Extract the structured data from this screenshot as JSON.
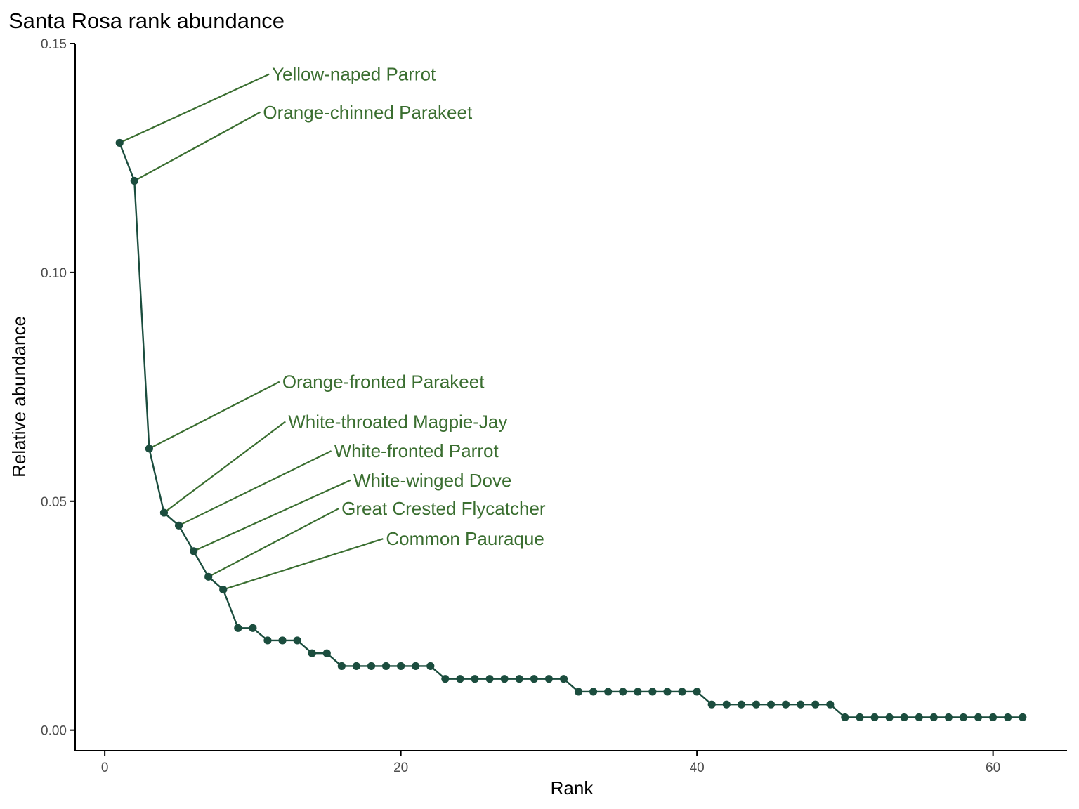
{
  "chart_data": {
    "type": "line",
    "title": "Santa Rosa rank abundance",
    "xlabel": "Rank",
    "ylabel": "Relative abundance",
    "xlim": [
      -2,
      65
    ],
    "ylim": [
      -0.0045,
      0.15
    ],
    "xticks": [
      0,
      20,
      40,
      60
    ],
    "yticks": [
      0.0,
      0.05,
      0.1,
      0.15
    ],
    "xtick_labels": [
      "0",
      "20",
      "40",
      "60"
    ],
    "ytick_labels": [
      "0.00",
      "0.05",
      "0.10",
      "0.15"
    ],
    "grid": false,
    "markers": true,
    "series": [
      {
        "x": [
          1,
          2,
          3,
          4,
          5,
          6,
          7,
          8,
          9,
          10,
          11,
          12,
          13,
          14,
          15,
          16,
          17,
          18,
          19,
          20,
          21,
          22,
          23,
          24,
          25,
          26,
          27,
          28,
          29,
          30,
          31,
          32,
          33,
          34,
          35,
          36,
          37,
          38,
          39,
          40,
          41,
          42,
          43,
          44,
          45,
          46,
          47,
          48,
          49,
          50,
          51,
          52,
          53,
          54,
          55,
          56,
          57,
          58,
          59,
          60,
          61,
          62
        ],
        "values": [
          0.1283,
          0.12,
          0.0615,
          0.0475,
          0.0447,
          0.0391,
          0.0335,
          0.0307,
          0.0223,
          0.0223,
          0.0196,
          0.0196,
          0.0196,
          0.0168,
          0.0168,
          0.014,
          0.014,
          0.014,
          0.014,
          0.014,
          0.014,
          0.014,
          0.0112,
          0.0112,
          0.0112,
          0.0112,
          0.0112,
          0.0112,
          0.0112,
          0.0112,
          0.0112,
          0.0084,
          0.0084,
          0.0084,
          0.0084,
          0.0084,
          0.0084,
          0.0084,
          0.0084,
          0.0084,
          0.0056,
          0.0056,
          0.0056,
          0.0056,
          0.0056,
          0.0056,
          0.0056,
          0.0056,
          0.0056,
          0.0028,
          0.0028,
          0.0028,
          0.0028,
          0.0028,
          0.0028,
          0.0028,
          0.0028,
          0.0028,
          0.0028,
          0.0028,
          0.0028,
          0.0028
        ]
      }
    ],
    "annotations": [
      {
        "label": "Yellow-naped Parrot",
        "rank": 1,
        "label_x": 11.1,
        "label_y": 0.1433
      },
      {
        "label": "Orange-chinned Parakeet",
        "rank": 2,
        "label_x": 10.5,
        "label_y": 0.135
      },
      {
        "label": "Orange-fronted Parakeet",
        "rank": 3,
        "label_x": 11.8,
        "label_y": 0.0761
      },
      {
        "label": "White-throated Magpie-Jay",
        "rank": 4,
        "label_x": 12.2,
        "label_y": 0.0674
      },
      {
        "label": "White-fronted Parrot",
        "rank": 5,
        "label_x": 15.3,
        "label_y": 0.061
      },
      {
        "label": "White-winged Dove",
        "rank": 6,
        "label_x": 16.6,
        "label_y": 0.0546
      },
      {
        "label": "Great Crested Flycatcher",
        "rank": 7,
        "label_x": 15.8,
        "label_y": 0.0484
      },
      {
        "label": "Common Pauraque",
        "rank": 8,
        "label_x": 18.8,
        "label_y": 0.0418
      }
    ],
    "colors": {
      "line": "#1b4d3e",
      "point": "#1b4d3e",
      "annotation": "#3a6e30",
      "axis": "#000000"
    }
  }
}
